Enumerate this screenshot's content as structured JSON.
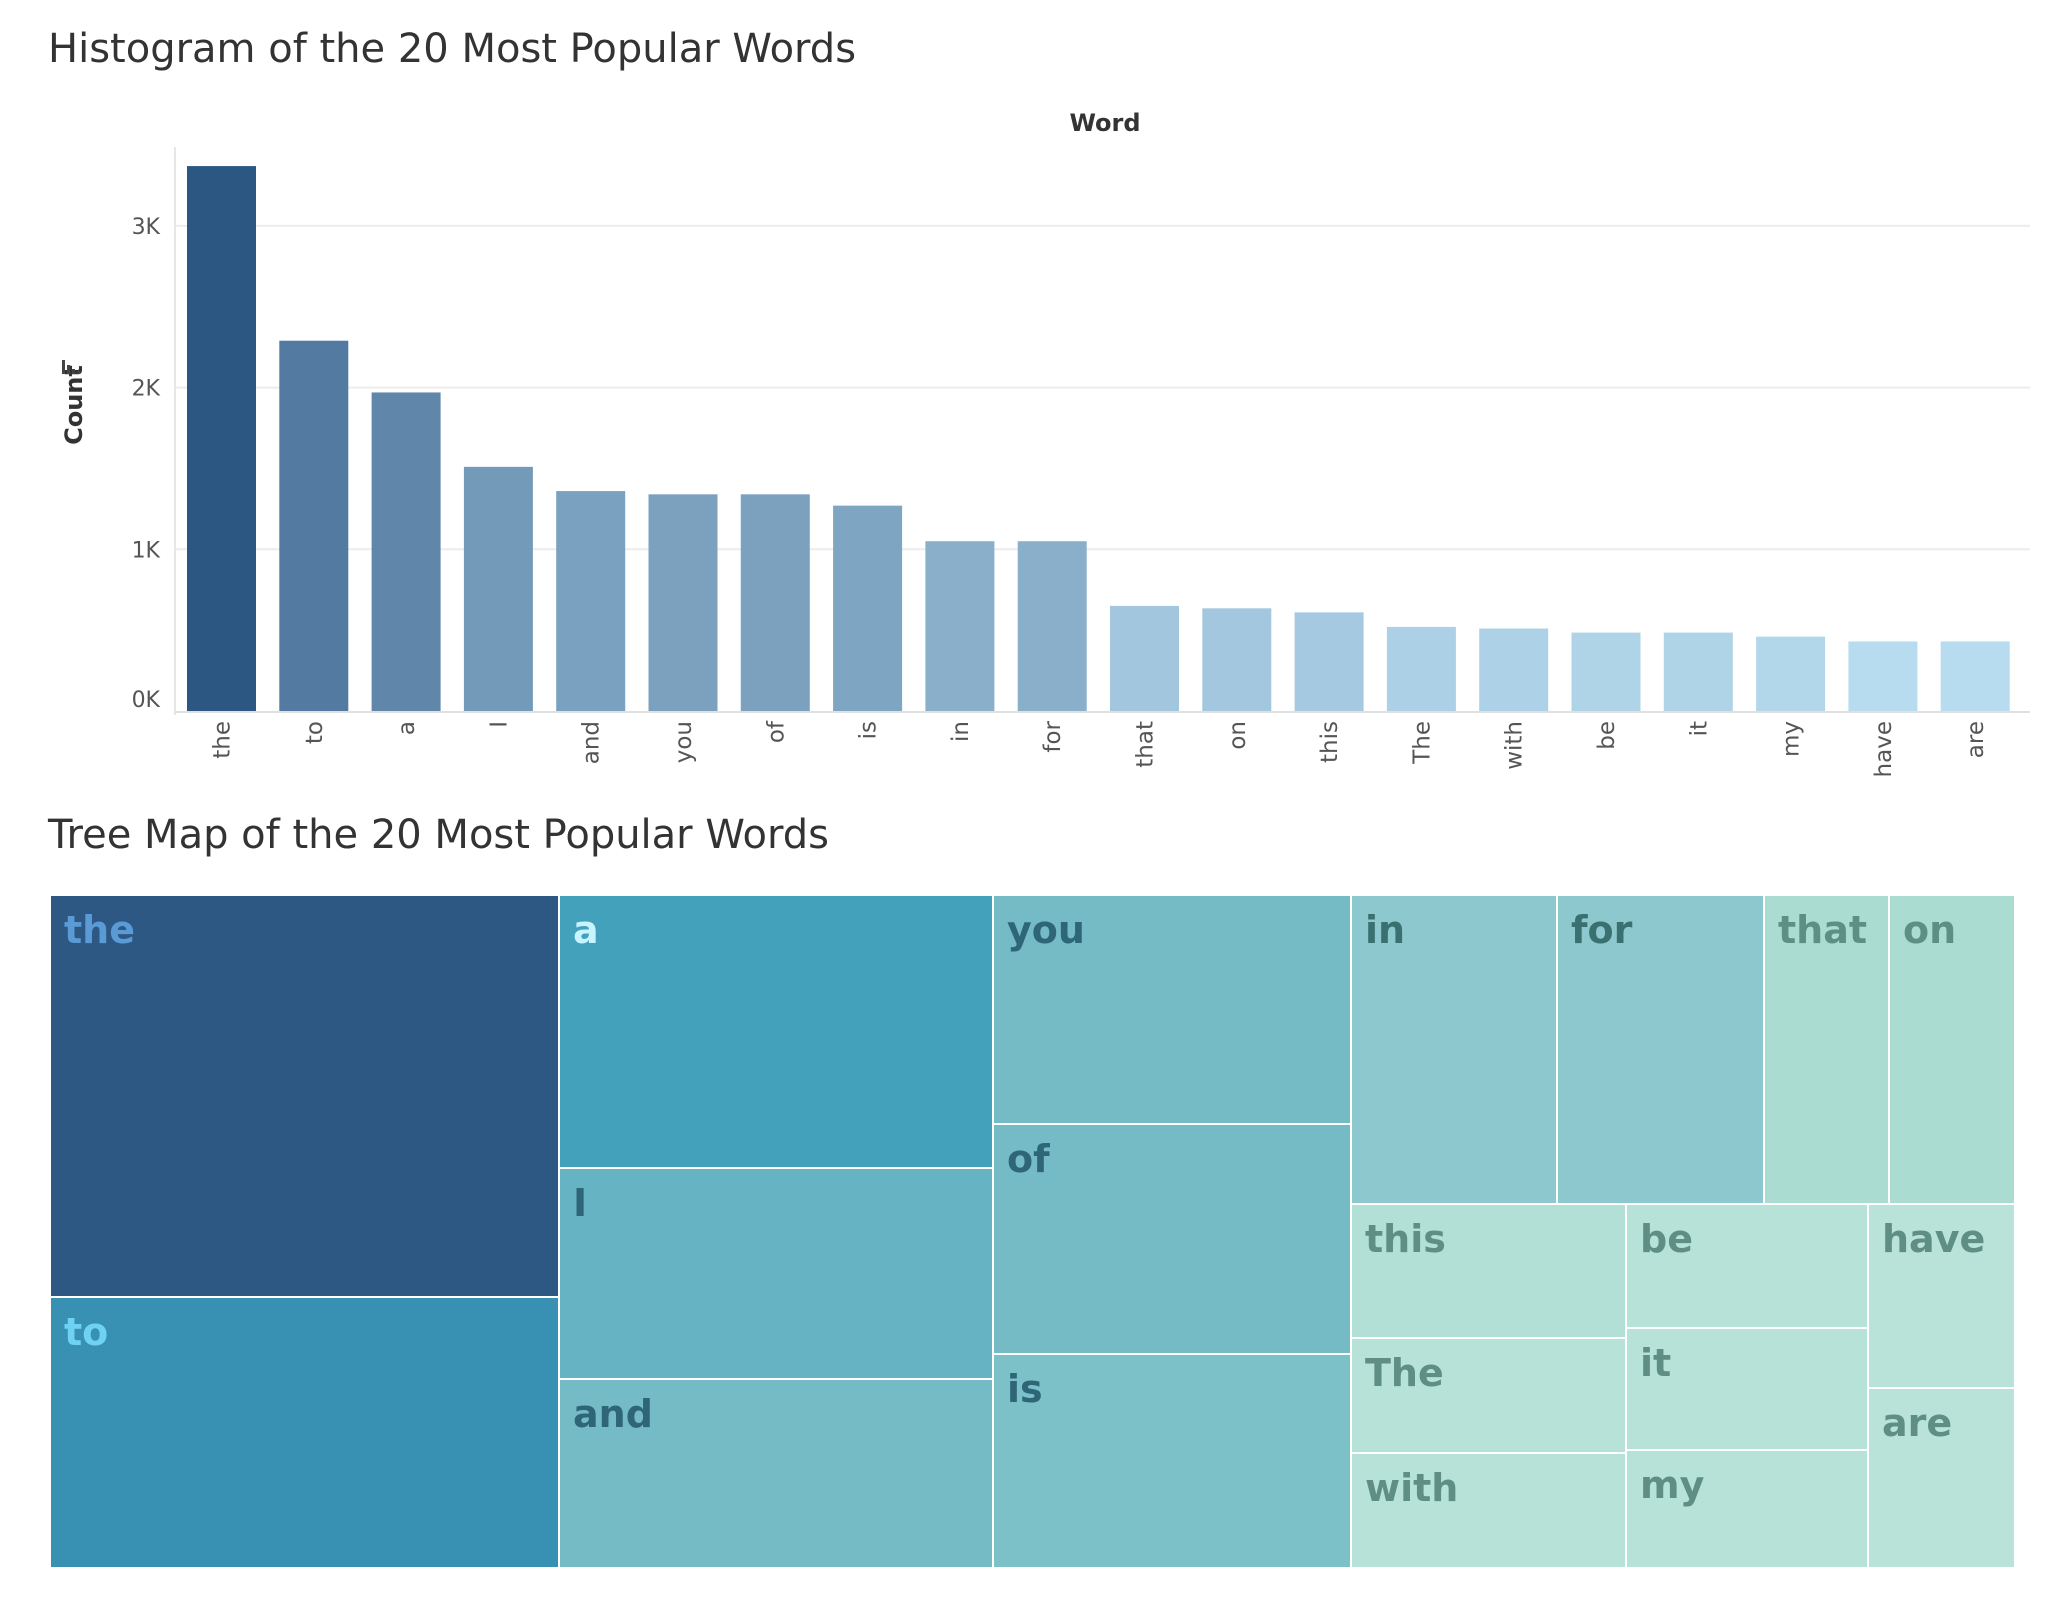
{
  "chart_data": [
    {
      "type": "bar",
      "title": "Histogram of the 20 Most Popular Words",
      "xlabel": "Word",
      "ylabel": "Count",
      "categories": [
        "the",
        "to",
        "a",
        "I",
        "and",
        "you",
        "of",
        "is",
        "in",
        "for",
        "that",
        "on",
        "this",
        "The",
        "with",
        "be",
        "it",
        "my",
        "have",
        "are"
      ],
      "values": [
        3370,
        2290,
        1970,
        1510,
        1360,
        1340,
        1340,
        1270,
        1050,
        1050,
        650,
        635,
        610,
        520,
        510,
        485,
        485,
        460,
        430,
        430
      ],
      "ylim": [
        0,
        3500
      ],
      "yticks": [
        0,
        1000,
        2000,
        3000
      ],
      "ytick_labels": [
        "0K",
        "1K",
        "2K",
        "3K"
      ],
      "grid": true,
      "colors": {
        "low": "#b8dcef",
        "high": "#2d5783"
      }
    },
    {
      "type": "treemap",
      "title": "Tree Map of the 20 Most Popular Words",
      "labels": [
        "the",
        "to",
        "a",
        "I",
        "and",
        "you",
        "of",
        "is",
        "in",
        "for",
        "that",
        "on",
        "this",
        "The",
        "with",
        "be",
        "it",
        "my",
        "have",
        "are"
      ],
      "values": [
        3370,
        2290,
        1970,
        1510,
        1360,
        1340,
        1340,
        1270,
        1050,
        1050,
        650,
        635,
        610,
        520,
        510,
        485,
        485,
        460,
        430,
        430
      ],
      "colors": {
        "the": "#2d5883",
        "to": "#3890b3",
        "a": "#44a1bc",
        "I": "#66b4c3",
        "and": "#74bbc6",
        "you": "#74bbc6",
        "of": "#74bbc6",
        "is": "#7cc0c8",
        "in": "#8dc8ce",
        "for": "#8dc8ce",
        "that": "#aadcd2",
        "on": "#aadcd2",
        "this": "#b2e0d6",
        "The": "#b7e2d7",
        "with": "#b7e2d7",
        "be": "#b7e2d7",
        "it": "#b7e2d7",
        "my": "#b7e2d7",
        "have": "#b9e3d8",
        "are": "#b9e3d8"
      },
      "label_colors": {
        "the": "#5b9bd5",
        "to": "#6ed2f5",
        "a": "#c8f4ff",
        "I": "#2e6577",
        "and": "#2e6577",
        "you": "#2e6577",
        "of": "#2e6577",
        "is": "#2e6577",
        "in": "#3a7070",
        "for": "#3a7070",
        "that": "#5f8e84",
        "on": "#5f8e84",
        "this": "#5f8e84",
        "The": "#5f8e84",
        "with": "#5f8e84",
        "be": "#5f8e84",
        "it": "#5f8e84",
        "my": "#5f8e84",
        "have": "#5f8e84",
        "are": "#5f8e84"
      }
    }
  ]
}
